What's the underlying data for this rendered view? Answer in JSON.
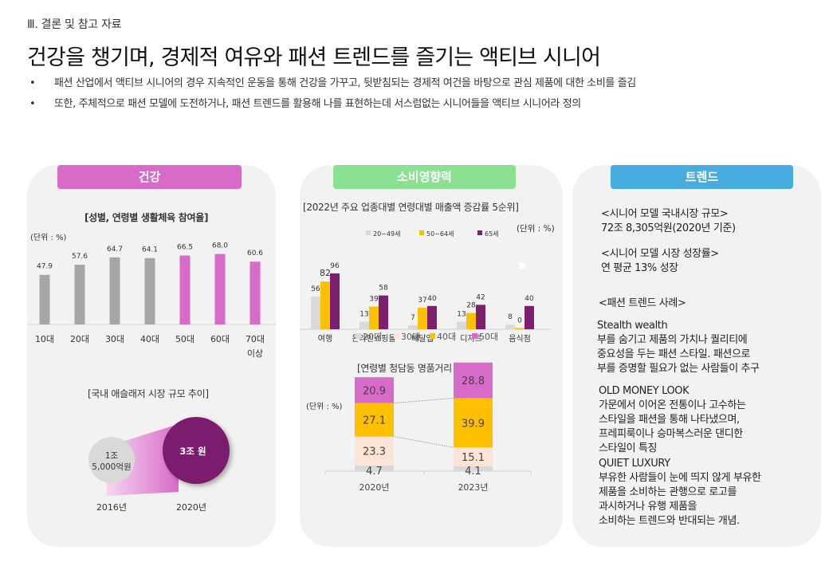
{
  "section_label": "Ⅲ. 결론 및 참고 자료",
  "title": "건강을 챙기며, 경제적 여유와 패션 트렌드를 즐기는 액티브 시니어",
  "bullets": [
    "패션 산업에서 액티브 시니어의 경우 지속적인 운동을 통해 건강을 가꾸고, 뒷받침되는 경제적 여건을 바탕으로 관심 제품에 대한 소비를 즐김",
    "또한, 주체적으로 패션 모델에 도전하거나, 패션 트렌드를 활용해 나를 표현하는데 서스럼없는 시니어들을 액티브 시니어라 정의"
  ],
  "bullet_symbol": "•",
  "colors": {
    "health": "#d86bc8",
    "consumption": "#8ae291",
    "trend": "#47ade0",
    "card_bg": "#f2f2f2",
    "gray_bar": "#a6a6a6",
    "purple": "#7b1f6e",
    "yellow": "#ffc000",
    "light_gray": "#d9d9d9",
    "peach": "#fce4d6"
  },
  "cards": {
    "health": {
      "header": "건강",
      "chart1_title": "[성별, 연령별 생활체육 참여율]",
      "chart1_unit": "(단위 : %)",
      "chart2_title": "[국내 애슬래저 시장 규모 추이]",
      "bubble_2016_line1": "1조",
      "bubble_2016_line2": "5,000억원",
      "bubble_2020": "3조 원",
      "year_2016": "2016년",
      "year_2020": "2020년"
    },
    "consumption": {
      "header": "소비영향력",
      "chart1_title": "[2022년 주요 업종대별 연령대별 매출액 증감률 5순위]",
      "chart1_unit": "(단위 : %)",
      "chart2_title": "[연령별 청담동 명품거리 매출]",
      "chart2_unit": "(단위 : %)"
    },
    "trend": {
      "header": "트렌드",
      "blocks": [
        {
          "lines": [
            "<시니어 모델 국내시장 규모>",
            "72조 8,305억원(2020년 기준)"
          ]
        },
        {
          "lines": [
            "<시니어 모델 시장 성장률>",
            "연 평균 13% 성장"
          ]
        },
        {
          "lines": [
            "<패션 트렌드 사례>"
          ]
        },
        {
          "lines": [
            "Stealth wealth",
            "부를 숨기고 제품의 가치나 퀄리티에",
            "중요성을 두는 패션 스타일. 패션으로",
            "부를 증명할 필요가 없는 사람들이 추구"
          ]
        },
        {
          "lines": [
            "OLD MONEY LOOK",
            "가문에서 이어온 전통이나 고수하는",
            "스타일을 패션을 통해 나타냈으며,",
            "프레피룩이나 승마복스러운 댄디한",
            "스타일이 특징"
          ]
        },
        {
          "lines": [
            "QUIET LUXURY",
            "부유한 사람들이 눈에 띄지 않게 부유한",
            "제품을 소비하는 관행으로 로고를",
            "과시하거나 유행 제품을",
            "소비하는 트렌드와 반대되는 개념."
          ]
        }
      ]
    }
  },
  "chart_data": [
    {
      "id": "sports-participation",
      "type": "bar",
      "title": "[성별, 연령별 생활체육 참여율]",
      "unit": "(단위 : %)",
      "categories": [
        "10대",
        "20대",
        "30대",
        "40대",
        "50대",
        "60대",
        "70대 이상"
      ],
      "category_lines": [
        [
          "10대"
        ],
        [
          "20대"
        ],
        [
          "30대"
        ],
        [
          "40대"
        ],
        [
          "50대"
        ],
        [
          "60대"
        ],
        [
          "70대",
          "이상"
        ]
      ],
      "values": [
        47.9,
        57.6,
        64.7,
        64.1,
        66.5,
        68.0,
        60.6
      ],
      "value_labels": [
        "47.9",
        "57.6",
        "64.7",
        "64.1",
        "66.5",
        "68.0",
        "60.6"
      ],
      "highlight": [
        false,
        false,
        false,
        false,
        true,
        true,
        true
      ],
      "ylim": [
        0,
        75
      ]
    },
    {
      "id": "athleisure-market",
      "type": "bubble",
      "title": "[국내 애슬래저 시장 규모 추이]",
      "categories": [
        "2016년",
        "2020년"
      ],
      "values_trillion_krw": [
        1.5,
        3.0
      ],
      "labels": [
        "1조 5,000억원",
        "3조 원"
      ]
    },
    {
      "id": "sales-growth-by-industry",
      "type": "bar",
      "title": "[2022년 주요 업종대별 연령대별 매출액 증감률 5순위]",
      "unit": "(단위 : %)",
      "categories": [
        "여행",
        "온라인쇼핑몰",
        "배달앱",
        "디저트",
        "음식점"
      ],
      "series": [
        {
          "name": "20~49세",
          "values": [
            56,
            13,
            7,
            13,
            8
          ]
        },
        {
          "name": "50~64세",
          "values": [
            82,
            39,
            37,
            28,
            0
          ]
        },
        {
          "name": "65세",
          "values": [
            96,
            58,
            40,
            42,
            40
          ]
        }
      ],
      "legend": "top",
      "ylim": [
        0,
        100
      ]
    },
    {
      "id": "cheongdam-luxury-sales",
      "type": "stacked_bar",
      "title": "[연령별 청담동 명품거리 매출]",
      "unit": "(단위 : %)",
      "categories": [
        "2020년",
        "2023년"
      ],
      "series": [
        {
          "name": "20대",
          "values": [
            4.7,
            4.1
          ]
        },
        {
          "name": "30대",
          "values": [
            23.3,
            15.1
          ]
        },
        {
          "name": "40대",
          "values": [
            27.1,
            39.9
          ]
        },
        {
          "name": "50대",
          "values": [
            20.9,
            28.8
          ]
        }
      ],
      "legend": "top",
      "ylim": [
        0,
        100
      ]
    }
  ]
}
